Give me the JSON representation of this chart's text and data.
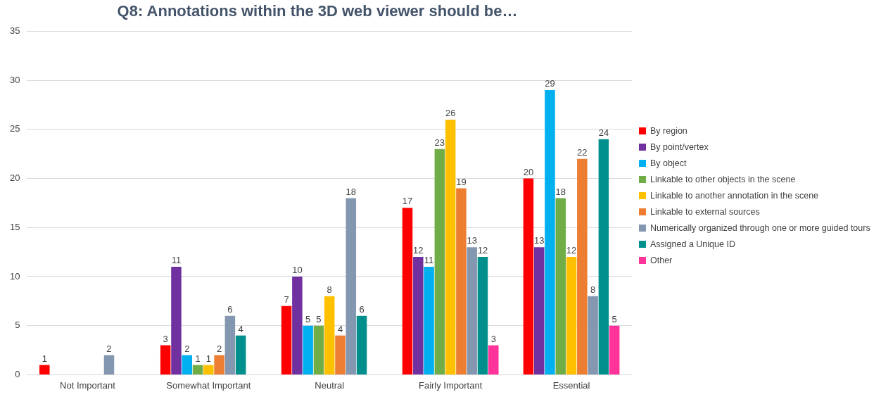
{
  "chart_data": {
    "type": "bar",
    "title": "Q8: Annotations within the 3D web viewer should be…",
    "categories": [
      "Not Important",
      "Somewhat Important",
      "Neutral",
      "Fairly Important",
      "Essential"
    ],
    "series": [
      {
        "name": "By region",
        "color": "#ff0000",
        "values": [
          1,
          3,
          7,
          17,
          20
        ]
      },
      {
        "name": "By point/vertex",
        "color": "#7030a0",
        "values": [
          null,
          11,
          10,
          12,
          13
        ]
      },
      {
        "name": "By object",
        "color": "#00b0f0",
        "values": [
          null,
          2,
          5,
          11,
          29
        ]
      },
      {
        "name": "Linkable to other objects in the scene",
        "color": "#70ad47",
        "values": [
          null,
          1,
          5,
          23,
          18
        ]
      },
      {
        "name": "Linkable to another annotation in the scene",
        "color": "#ffc000",
        "values": [
          null,
          1,
          8,
          26,
          12
        ]
      },
      {
        "name": "Linkable to external sources",
        "color": "#ed7d31",
        "values": [
          null,
          2,
          4,
          19,
          22
        ]
      },
      {
        "name": "Numerically organized through one or more guided tours",
        "color": "#8497b0",
        "values": [
          2,
          6,
          18,
          13,
          8
        ]
      },
      {
        "name": "Assigned a Unique ID",
        "color": "#008f8c",
        "values": [
          null,
          4,
          6,
          12,
          24
        ]
      },
      {
        "name": "Other",
        "color": "#ff3399",
        "values": [
          null,
          null,
          null,
          3,
          5
        ]
      }
    ],
    "ylim": [
      0,
      35
    ],
    "yticks": [
      0,
      5,
      10,
      15,
      20,
      25,
      30,
      35
    ],
    "grid": "y",
    "legend": "right",
    "data_labels": true
  }
}
